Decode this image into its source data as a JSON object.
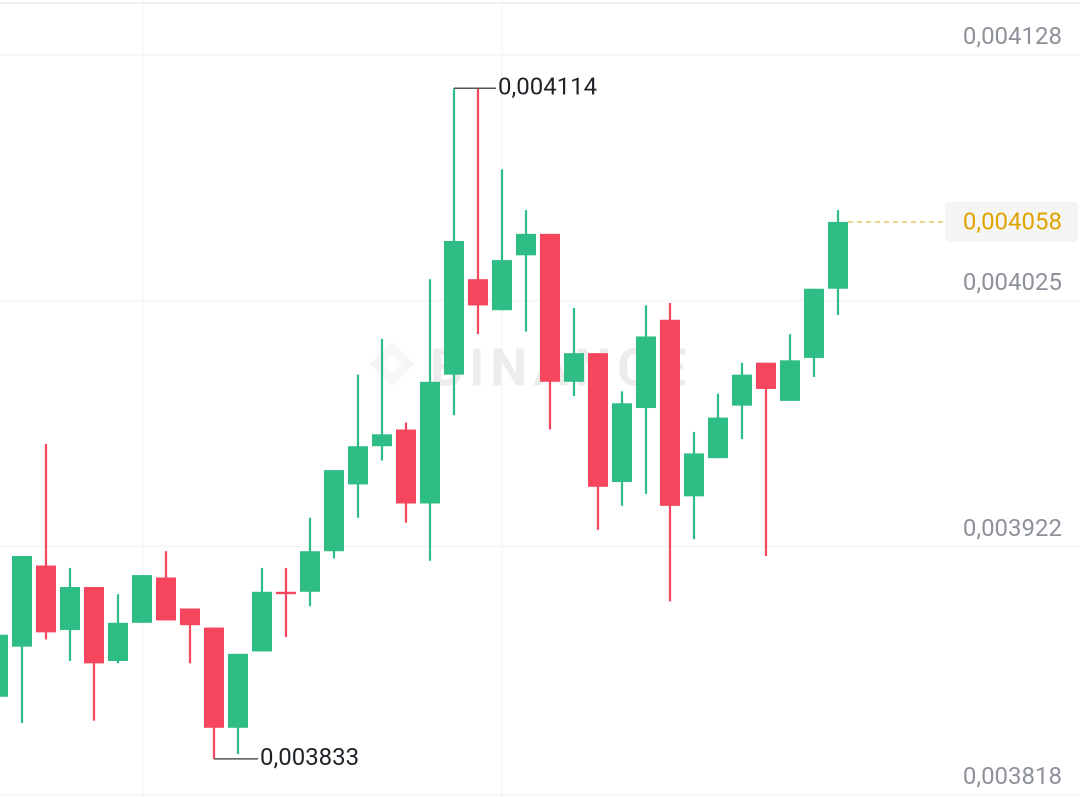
{
  "chart_data": {
    "type": "candlestick",
    "watermark": "BINANCE",
    "up_color": "#2ebd85",
    "down_color": "#f6465d",
    "ylim": [
      0.003817,
      0.004151
    ],
    "yticks": [
      {
        "value": 0.004128,
        "label": "0,004128"
      },
      {
        "value": 0.004025,
        "label": "0,004025"
      },
      {
        "value": 0.003922,
        "label": "0,003922"
      },
      {
        "value": 0.003818,
        "label": "0,003818"
      }
    ],
    "grid": true,
    "open": [
      0.003859,
      0.00388,
      0.003914,
      0.003887,
      0.003905,
      0.003874,
      0.00389,
      0.003909,
      0.003896,
      0.003888,
      0.003846,
      0.003878,
      0.003903,
      0.003903,
      0.00392,
      0.003948,
      0.003964,
      0.003971,
      0.00394,
      0.003994,
      0.004034,
      0.004021,
      0.004044,
      0.004053,
      0.003991,
      0.004003,
      0.003949,
      0.00398,
      0.004017,
      0.003943,
      0.003959,
      0.003981,
      0.003999,
      0.003983,
      0.004001,
      0.00403
    ],
    "high": [
      0.003891,
      0.003918,
      0.003965,
      0.003913,
      0.003905,
      0.003902,
      0.00391,
      0.00392,
      0.003896,
      0.003888,
      0.003877,
      0.003913,
      0.003913,
      0.003934,
      0.003954,
      0.003994,
      0.004009,
      0.003974,
      0.004034,
      0.004114,
      0.004114,
      0.00408,
      0.004063,
      0.004053,
      0.004022,
      0.004003,
      0.003987,
      0.004023,
      0.004024,
      0.00397,
      0.003986,
      0.003999,
      0.003999,
      0.004011,
      0.00403,
      0.004063
    ],
    "low": [
      0.003859,
      0.003848,
      0.003883,
      0.003874,
      0.003849,
      0.003873,
      0.00389,
      0.003891,
      0.003873,
      0.003833,
      0.003835,
      0.003878,
      0.003884,
      0.003897,
      0.003917,
      0.003934,
      0.003958,
      0.003932,
      0.003916,
      0.003977,
      0.004011,
      0.004021,
      0.004012,
      0.003971,
      0.003985,
      0.003929,
      0.003939,
      0.003944,
      0.003899,
      0.003925,
      0.003959,
      0.003967,
      0.003918,
      0.003983,
      0.003993,
      0.004019
    ],
    "close": [
      0.003885,
      0.003918,
      0.003886,
      0.003905,
      0.003873,
      0.00389,
      0.00391,
      0.003891,
      0.003889,
      0.003846,
      0.003877,
      0.003903,
      0.003902,
      0.00392,
      0.003954,
      0.003964,
      0.003969,
      0.00394,
      0.003991,
      0.00405,
      0.004023,
      0.004042,
      0.004053,
      0.003991,
      0.004003,
      0.003947,
      0.003982,
      0.00401,
      0.003939,
      0.003961,
      0.003976,
      0.003994,
      0.003988,
      0.004,
      0.00403,
      0.004058
    ],
    "high_annotation": {
      "value": 0.004114,
      "label": "0,004114"
    },
    "low_annotation": {
      "value": 0.003833,
      "label": "0,003833"
    },
    "last_price": {
      "value": 0.004058,
      "label": "0,004058",
      "color": "#e0a400"
    }
  }
}
